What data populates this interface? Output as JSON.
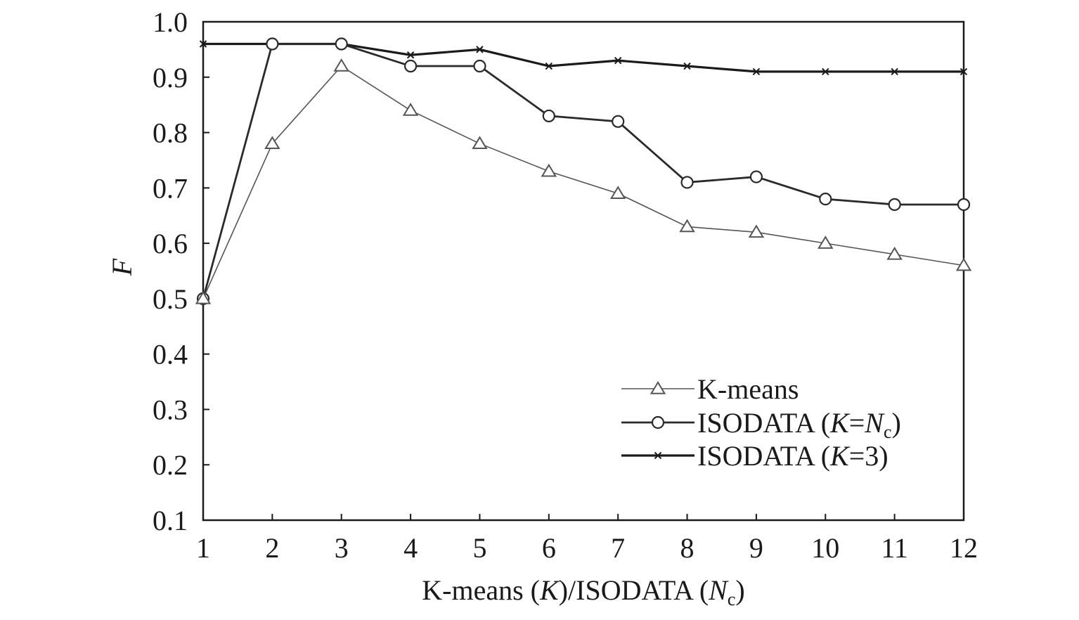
{
  "chart_data": {
    "type": "line",
    "xlabel_parts": [
      "K-means (",
      "K",
      ")/ISODATA (",
      "N",
      "c",
      ")"
    ],
    "ylabel": "F",
    "x": [
      1,
      2,
      3,
      4,
      5,
      6,
      7,
      8,
      9,
      10,
      11,
      12
    ],
    "xlim": [
      1,
      12
    ],
    "ylim": [
      0.1,
      1.0
    ],
    "xticks": [
      "1",
      "2",
      "3",
      "4",
      "5",
      "6",
      "7",
      "8",
      "9",
      "10",
      "11",
      "12"
    ],
    "yticks": [
      "0.1",
      "0.2",
      "0.3",
      "0.4",
      "0.5",
      "0.6",
      "0.7",
      "0.8",
      "0.9",
      "1.0"
    ],
    "grid": false,
    "legend_position": "lower-right",
    "series": [
      {
        "name": "K-means",
        "legend_parts": [
          "K-means"
        ],
        "marker": "triangle",
        "color": "#555555",
        "values": [
          0.5,
          0.78,
          0.92,
          0.84,
          0.78,
          0.73,
          0.69,
          0.63,
          0.62,
          0.6,
          0.58,
          0.56
        ]
      },
      {
        "name": "ISODATA (K=Nc)",
        "legend_parts": [
          "ISODATA (",
          "K",
          "=",
          "N",
          "c",
          ")"
        ],
        "marker": "circle",
        "color": "#2a2a2a",
        "values": [
          0.5,
          0.96,
          0.96,
          0.92,
          0.92,
          0.83,
          0.82,
          0.71,
          0.72,
          0.68,
          0.67,
          0.67
        ]
      },
      {
        "name": "ISODATA (K=3)",
        "legend_parts": [
          "ISODATA (",
          "K",
          "=3)"
        ],
        "marker": "x",
        "color": "#1a1a1a",
        "values": [
          0.96,
          0.96,
          0.96,
          0.94,
          0.95,
          0.92,
          0.93,
          0.92,
          0.91,
          0.91,
          0.91,
          0.91
        ]
      }
    ]
  }
}
